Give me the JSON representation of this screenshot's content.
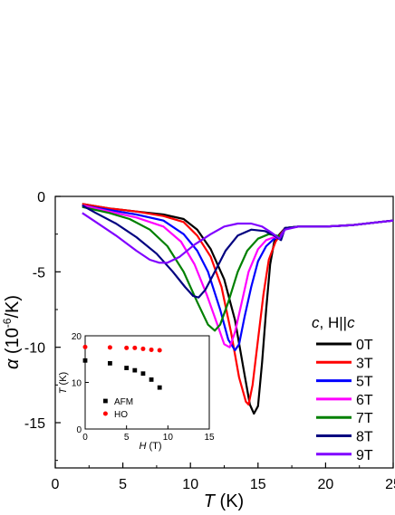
{
  "chart_data": [
    {
      "type": "line",
      "xlabel_var": "T",
      "xlabel_unit": " (K)",
      "ylabel_var": "α",
      "ylabel_unit_pre": " (10",
      "ylabel_exp": "-6",
      "ylabel_unit_post": "/K)",
      "xlim": [
        0,
        25
      ],
      "ylim": [
        -18,
        0
      ],
      "xticks": [
        "0",
        "5",
        "10",
        "15",
        "20",
        "25"
      ],
      "xtick_values": [
        0,
        5,
        10,
        15,
        20,
        25
      ],
      "yticks": [
        "0",
        "-5",
        "-10",
        "-15"
      ],
      "ytick_values": [
        0,
        -5,
        -10,
        -15
      ],
      "grid": false,
      "legend_placement": "right",
      "legend_title_var": "c",
      "legend_title_rest": ", H||",
      "legend_title_var2": "c",
      "series": [
        {
          "name": "0T",
          "color": "#000000",
          "points": [
            [
              2,
              -0.5
            ],
            [
              4,
              -0.8
            ],
            [
              6,
              -1.0
            ],
            [
              8,
              -1.2
            ],
            [
              9.5,
              -1.5
            ],
            [
              10.5,
              -2.2
            ],
            [
              11.5,
              -3.5
            ],
            [
              12.5,
              -5.5
            ],
            [
              13.3,
              -8.2
            ],
            [
              14,
              -11.8
            ],
            [
              14.4,
              -13.8
            ],
            [
              14.7,
              -14.4
            ],
            [
              15,
              -13.9
            ],
            [
              15.3,
              -11.0
            ],
            [
              15.6,
              -7.5
            ],
            [
              15.9,
              -4.5
            ],
            [
              16.2,
              -3.0
            ],
            [
              16.6,
              -2.5
            ],
            [
              17,
              -2.1
            ],
            [
              18,
              -2.0
            ],
            [
              20,
              -2.0
            ],
            [
              22,
              -1.9
            ],
            [
              24,
              -1.7
            ],
            [
              25,
              -1.6
            ]
          ]
        },
        {
          "name": "3T",
          "color": "#ff0000",
          "points": [
            [
              2,
              -0.5
            ],
            [
              4,
              -0.8
            ],
            [
              6,
              -1.0
            ],
            [
              8,
              -1.3
            ],
            [
              9.5,
              -1.7
            ],
            [
              10.5,
              -2.6
            ],
            [
              11.5,
              -4.0
            ],
            [
              12.3,
              -6.0
            ],
            [
              13,
              -9.0
            ],
            [
              13.6,
              -12.0
            ],
            [
              14.1,
              -13.6
            ],
            [
              14.3,
              -13.8
            ],
            [
              14.6,
              -12.5
            ],
            [
              15,
              -9.5
            ],
            [
              15.4,
              -6.5
            ],
            [
              15.8,
              -4.2
            ],
            [
              16.3,
              -3.0
            ],
            [
              16.6,
              -2.6
            ],
            [
              17,
              -2.1
            ],
            [
              18,
              -2.0
            ],
            [
              20,
              -2.0
            ],
            [
              22,
              -1.9
            ],
            [
              24,
              -1.7
            ],
            [
              25,
              -1.6
            ]
          ]
        },
        {
          "name": "5T",
          "color": "#0000ff",
          "points": [
            [
              2,
              -0.6
            ],
            [
              4,
              -0.9
            ],
            [
              6,
              -1.2
            ],
            [
              8,
              -1.6
            ],
            [
              9.5,
              -2.5
            ],
            [
              10.5,
              -3.6
            ],
            [
              11.3,
              -5.0
            ],
            [
              12.2,
              -7.5
            ],
            [
              12.8,
              -9.5
            ],
            [
              13.3,
              -10.2
            ],
            [
              13.6,
              -9.8
            ],
            [
              14,
              -8.0
            ],
            [
              14.5,
              -6.0
            ],
            [
              15,
              -4.3
            ],
            [
              15.6,
              -3.3
            ],
            [
              16.2,
              -2.8
            ],
            [
              16.6,
              -2.7
            ],
            [
              17,
              -2.1
            ],
            [
              18,
              -2.0
            ],
            [
              20,
              -2.0
            ],
            [
              22,
              -1.9
            ],
            [
              24,
              -1.7
            ],
            [
              25,
              -1.6
            ]
          ]
        },
        {
          "name": "6T",
          "color": "#ff00ff",
          "points": [
            [
              2,
              -0.6
            ],
            [
              4,
              -1.0
            ],
            [
              6,
              -1.4
            ],
            [
              8,
              -2.0
            ],
            [
              9.3,
              -3.0
            ],
            [
              10.3,
              -4.5
            ],
            [
              11.2,
              -6.5
            ],
            [
              12,
              -8.5
            ],
            [
              12.5,
              -9.8
            ],
            [
              12.9,
              -10.0
            ],
            [
              13.3,
              -9.0
            ],
            [
              13.8,
              -7.0
            ],
            [
              14.3,
              -5.0
            ],
            [
              15,
              -3.5
            ],
            [
              15.6,
              -2.9
            ],
            [
              16.2,
              -2.7
            ],
            [
              16.6,
              -2.8
            ],
            [
              17,
              -2.1
            ],
            [
              18,
              -2.0
            ],
            [
              20,
              -2.0
            ],
            [
              22,
              -1.9
            ],
            [
              24,
              -1.7
            ],
            [
              25,
              -1.6
            ]
          ]
        },
        {
          "name": "7T",
          "color": "#008000",
          "points": [
            [
              2,
              -0.7
            ],
            [
              4,
              -1.1
            ],
            [
              5.5,
              -1.5
            ],
            [
              7,
              -2.2
            ],
            [
              8.3,
              -3.3
            ],
            [
              9.5,
              -5.0
            ],
            [
              10.5,
              -7.0
            ],
            [
              11.3,
              -8.5
            ],
            [
              11.8,
              -8.9
            ],
            [
              12.2,
              -8.5
            ],
            [
              12.8,
              -7.0
            ],
            [
              13.5,
              -5.0
            ],
            [
              14.2,
              -3.6
            ],
            [
              15,
              -2.8
            ],
            [
              15.8,
              -2.5
            ],
            [
              16.4,
              -2.6
            ],
            [
              16.7,
              -2.7
            ],
            [
              17,
              -2.1
            ],
            [
              18,
              -2.0
            ],
            [
              20,
              -2.0
            ],
            [
              22,
              -1.9
            ],
            [
              24,
              -1.7
            ],
            [
              25,
              -1.6
            ]
          ]
        },
        {
          "name": "8T",
          "color": "#000080",
          "points": [
            [
              2,
              -0.6
            ],
            [
              3,
              -1.1
            ],
            [
              4.5,
              -1.8
            ],
            [
              6,
              -2.7
            ],
            [
              7.5,
              -3.8
            ],
            [
              8.7,
              -5.0
            ],
            [
              9.6,
              -6.0
            ],
            [
              10.2,
              -6.6
            ],
            [
              10.6,
              -6.7
            ],
            [
              11.1,
              -6.2
            ],
            [
              11.8,
              -5.0
            ],
            [
              12.6,
              -3.6
            ],
            [
              13.5,
              -2.6
            ],
            [
              14.5,
              -2.2
            ],
            [
              15.5,
              -2.3
            ],
            [
              16.2,
              -2.6
            ],
            [
              16.7,
              -2.9
            ],
            [
              17,
              -2.1
            ],
            [
              18,
              -2.0
            ],
            [
              20,
              -2.0
            ],
            [
              22,
              -1.9
            ],
            [
              24,
              -1.7
            ],
            [
              25,
              -1.6
            ]
          ]
        },
        {
          "name": "9T",
          "color": "#8000ff",
          "points": [
            [
              2,
              -1.1
            ],
            [
              3,
              -1.7
            ],
            [
              4.5,
              -2.6
            ],
            [
              6,
              -3.6
            ],
            [
              7,
              -4.2
            ],
            [
              7.7,
              -4.4
            ],
            [
              8.3,
              -4.4
            ],
            [
              9.2,
              -4.0
            ],
            [
              10.3,
              -3.2
            ],
            [
              11.5,
              -2.5
            ],
            [
              12.5,
              -2.0
            ],
            [
              13.5,
              -1.8
            ],
            [
              14.5,
              -1.8
            ],
            [
              15.3,
              -2.0
            ],
            [
              16,
              -2.4
            ],
            [
              16.6,
              -2.8
            ],
            [
              17,
              -2.2
            ],
            [
              18,
              -2.0
            ],
            [
              20,
              -2.0
            ],
            [
              22,
              -1.9
            ],
            [
              24,
              -1.7
            ],
            [
              25,
              -1.6
            ]
          ]
        }
      ]
    },
    {
      "type": "scatter",
      "inset": true,
      "xlabel_var": "H",
      "xlabel_unit": " (T)",
      "ylabel_var": "T",
      "ylabel_unit": " (K)",
      "xlim": [
        0,
        15
      ],
      "ylim": [
        0,
        20
      ],
      "xticks": [
        "0",
        "5",
        "10",
        "15"
      ],
      "xtick_values": [
        0,
        5,
        10,
        15
      ],
      "yticks": [
        "0",
        "10",
        "20"
      ],
      "ytick_values": [
        0,
        10,
        20
      ],
      "legend_placement": "lower-right",
      "series": [
        {
          "name": "AFM",
          "color": "#000000",
          "marker": "square",
          "points": [
            [
              0,
              14.7
            ],
            [
              3,
              14.1
            ],
            [
              5,
              13.1
            ],
            [
              6,
              12.6
            ],
            [
              7,
              11.9
            ],
            [
              8,
              10.6
            ],
            [
              9,
              8.9
            ]
          ]
        },
        {
          "name": "HO",
          "color": "#ff0000",
          "marker": "circle",
          "points": [
            [
              0,
              17.6
            ],
            [
              3,
              17.5
            ],
            [
              5,
              17.4
            ],
            [
              6,
              17.4
            ],
            [
              7,
              17.2
            ],
            [
              8,
              17.0
            ],
            [
              9,
              16.9
            ]
          ]
        }
      ]
    }
  ]
}
